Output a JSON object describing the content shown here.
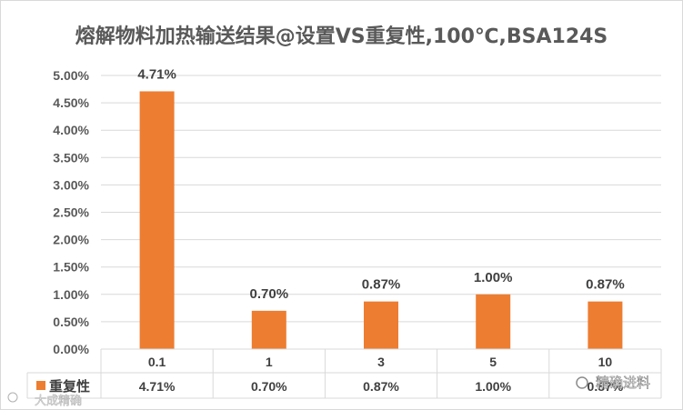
{
  "chart_data": {
    "type": "bar",
    "title": "熔解物料加热输送结果@设置VS重复性,100℃,BSA124S",
    "categories": [
      "0.1",
      "1",
      "3",
      "5",
      "10"
    ],
    "series": [
      {
        "name": "重复性",
        "values": [
          4.71,
          0.7,
          0.87,
          1.0,
          0.87
        ],
        "labels": [
          "4.71%",
          "0.70%",
          "0.87%",
          "1.00%",
          "0.87%"
        ],
        "color": "#ED7D31"
      }
    ],
    "y_ticks": [
      "0.00%",
      "0.50%",
      "1.00%",
      "1.50%",
      "2.00%",
      "2.50%",
      "3.00%",
      "3.50%",
      "4.00%",
      "4.50%",
      "5.00%"
    ],
    "ylim": [
      0,
      5
    ],
    "y_unit": "%",
    "grid": true,
    "data_table": true,
    "legend": "data-table-left"
  },
  "watermarks": {
    "bottom_right": "精确进料",
    "bottom_left": "大成精确"
  }
}
